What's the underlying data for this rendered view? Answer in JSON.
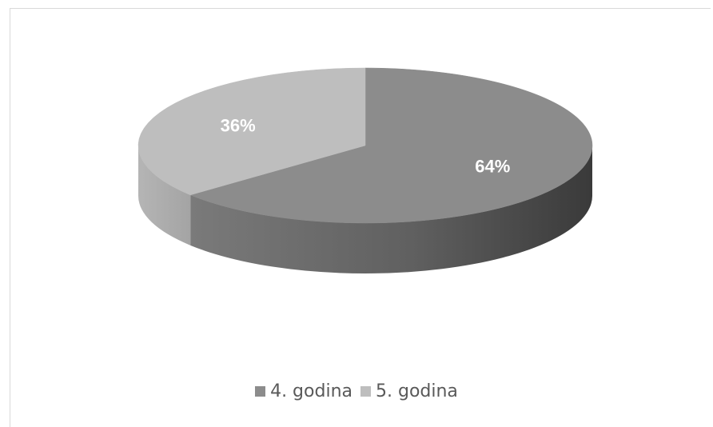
{
  "chart_data": {
    "type": "pie",
    "style": "3d",
    "categories": [
      "4. godina",
      "5. godina"
    ],
    "values": [
      64,
      36
    ],
    "data_labels": [
      "64%",
      "36%"
    ],
    "colors": [
      "#8c8c8c",
      "#bebebe"
    ],
    "side_colors": [
      "#4d4d4d",
      "#a9a9a9"
    ],
    "legend_position": "bottom"
  },
  "legend": {
    "items": [
      {
        "label": "4. godina",
        "color": "#8c8c8c"
      },
      {
        "label": "5. godina",
        "color": "#bebebe"
      }
    ]
  }
}
